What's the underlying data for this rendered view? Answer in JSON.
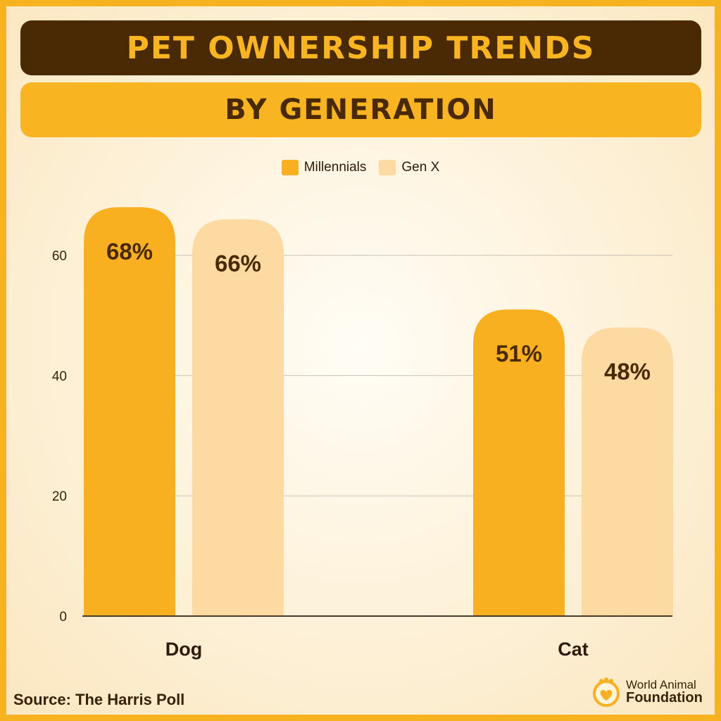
{
  "header": {
    "title": "PET OWNERSHIP TRENDS",
    "subtitle": "BY GENERATION"
  },
  "colors": {
    "millennials": "#f8b021",
    "genx": "#fddaa2",
    "text_dark": "#4a2a04",
    "grid": "#c9c4ba"
  },
  "chart_data": {
    "type": "bar",
    "categories": [
      "Dog",
      "Cat"
    ],
    "series": [
      {
        "name": "Millennials",
        "values": [
          68,
          51
        ],
        "labels": [
          "68%",
          "51%"
        ]
      },
      {
        "name": "Gen X",
        "values": [
          66,
          48
        ],
        "labels": [
          "66%",
          "48%"
        ]
      }
    ],
    "yticks": [
      0,
      20,
      40,
      60
    ],
    "ylim": [
      0,
      60
    ],
    "grid": true,
    "legend_position": "top-center"
  },
  "footer": {
    "source": "Source: The Harris Poll",
    "logo_line1": "World Animal",
    "logo_line2": "Foundation"
  }
}
